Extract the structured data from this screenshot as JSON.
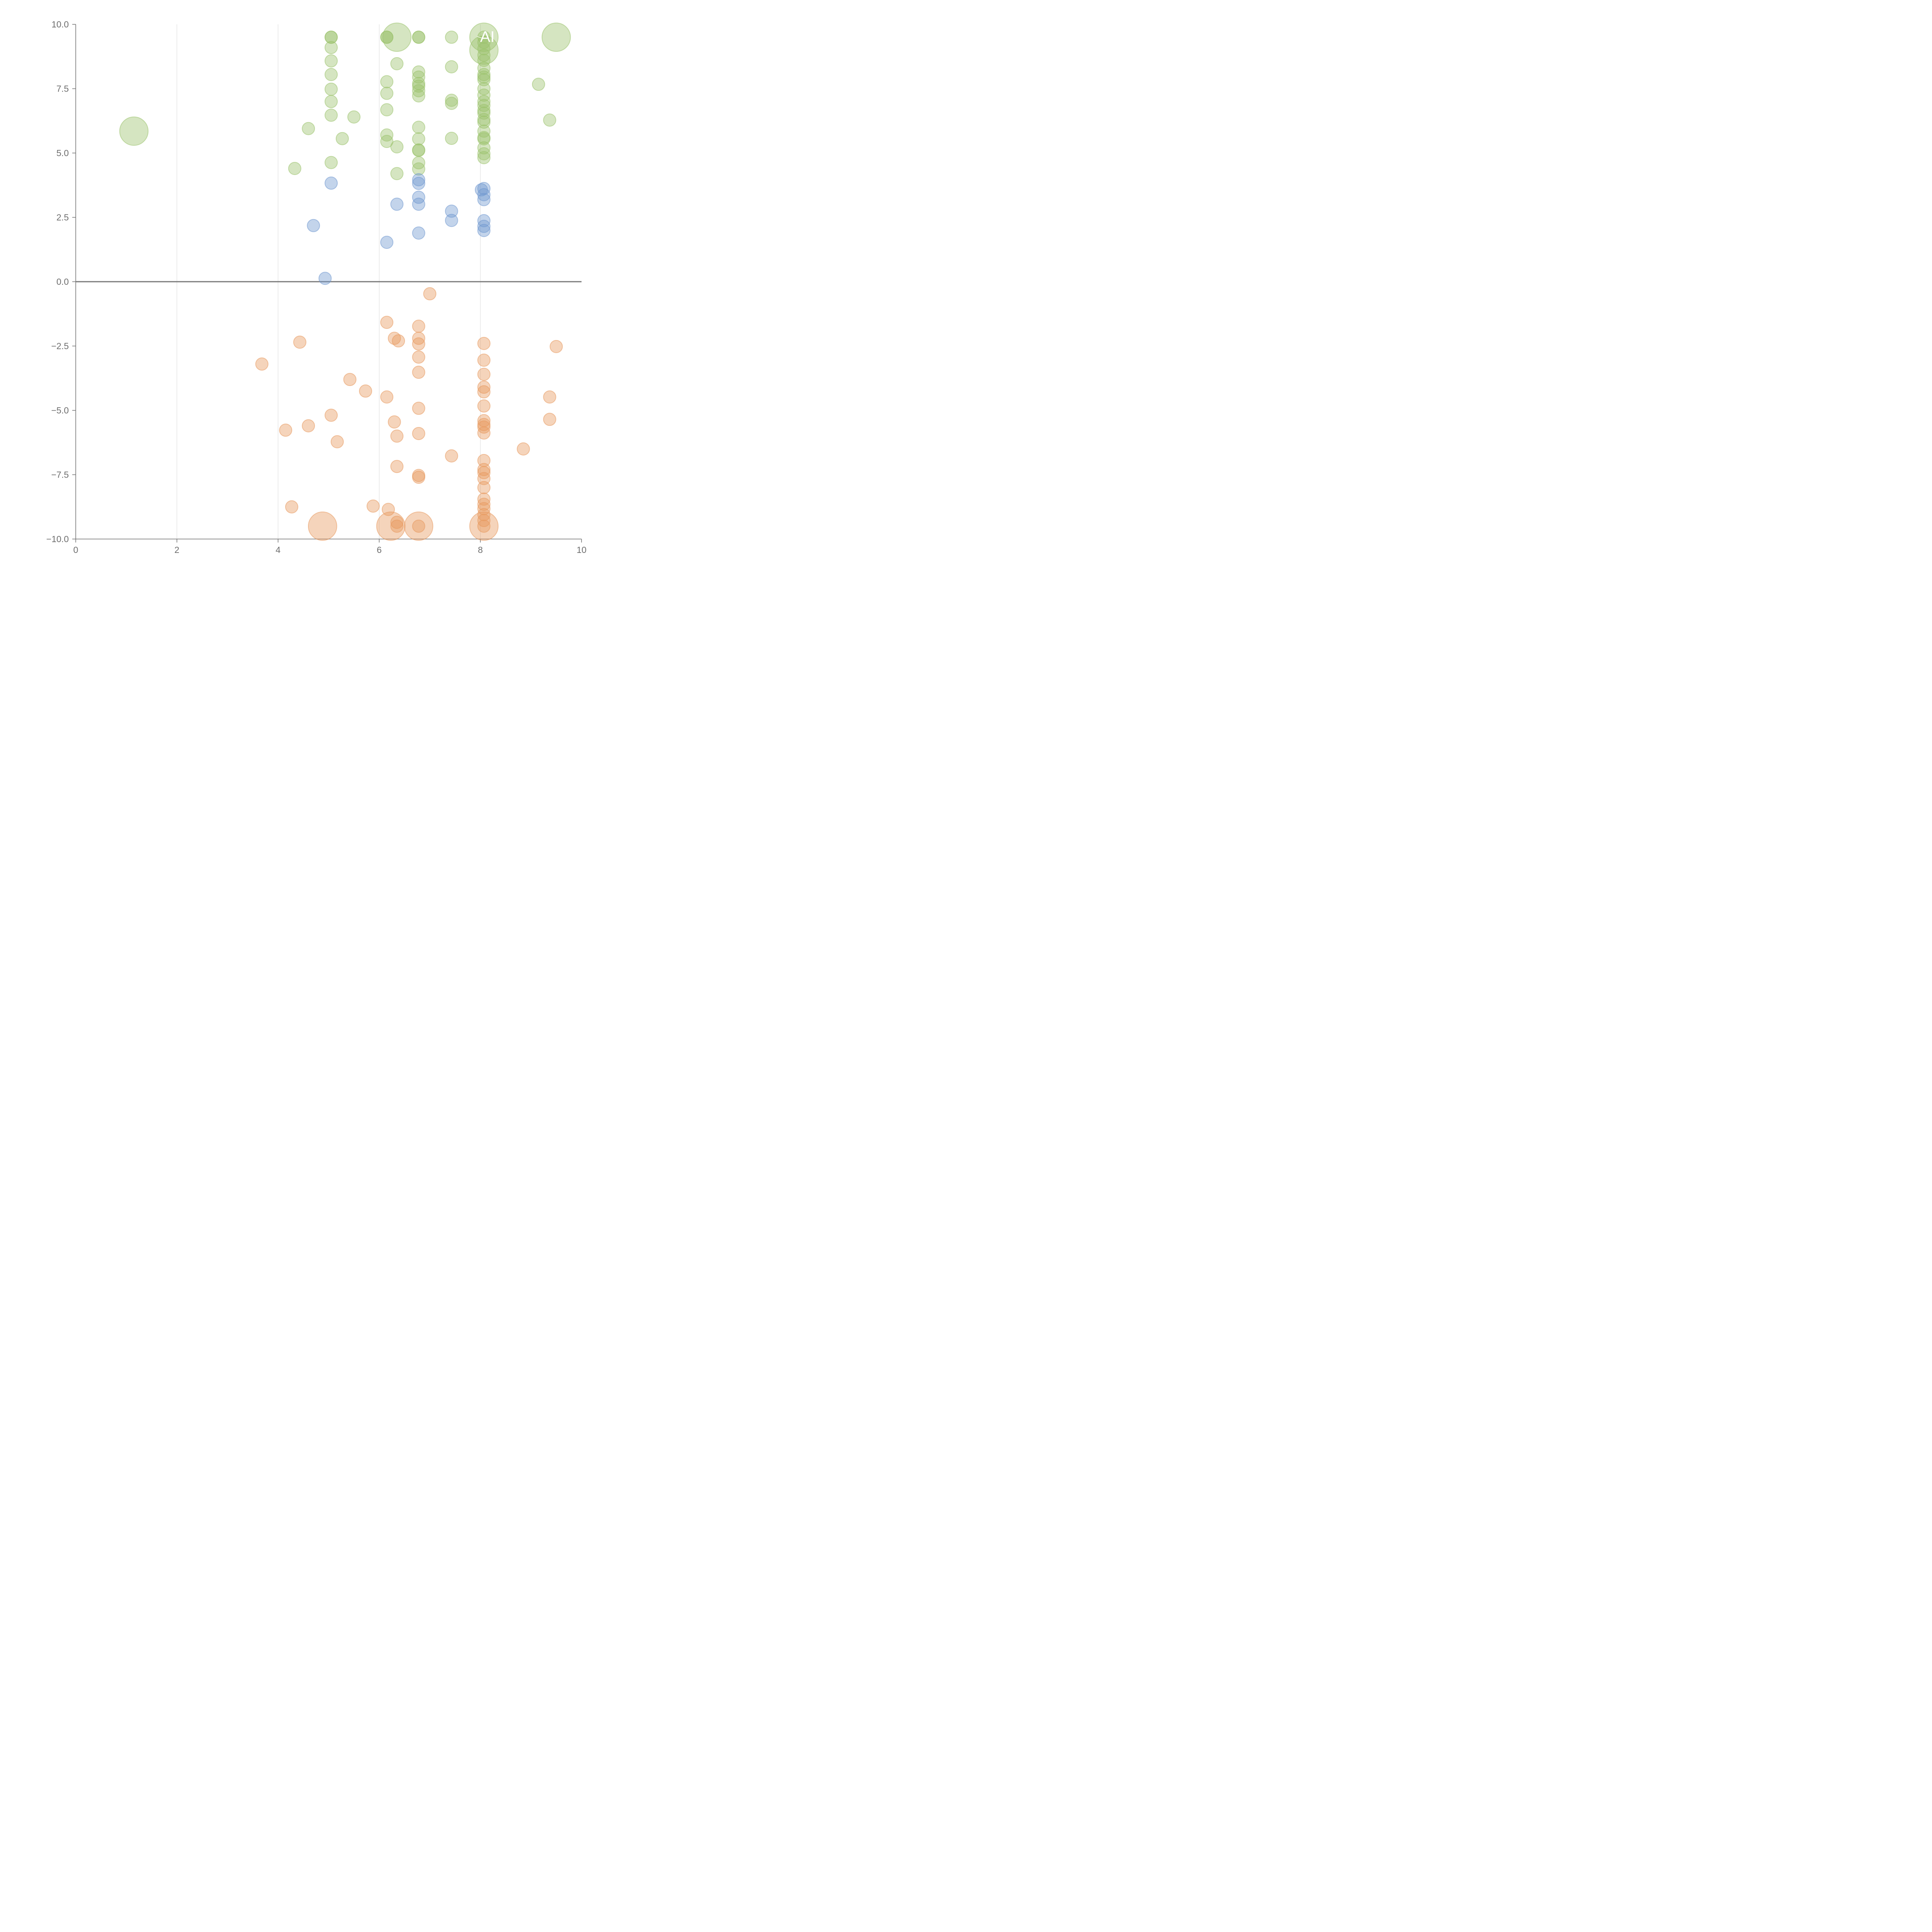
{
  "chart_data": {
    "type": "scatter",
    "title": "",
    "xlabel": "",
    "ylabel": "",
    "xlim": [
      0,
      10
    ],
    "ylim": [
      -10,
      10
    ],
    "xticks": [
      "0",
      "2",
      "4",
      "6",
      "8",
      "10"
    ],
    "yticks": [
      "10.0",
      "7.5",
      "5.0",
      "2.5",
      "0.0",
      "−2.5",
      "−5.0",
      "−7.5",
      "−10.0"
    ],
    "x_gridlines": [
      2,
      4,
      6,
      8
    ],
    "grid_x": true,
    "grid_y": false,
    "reference_line_y": 0,
    "colors": {
      "green": "#9bc26b",
      "blue": "#6f98cf",
      "orange": "#e8995e",
      "axis": "#6e6e6e",
      "grid": "#d9d9d9"
    },
    "series": [
      {
        "color": "green",
        "points": [
          {
            "x": 1.15,
            "y": 5.85,
            "s": 2.3
          },
          {
            "x": 4.33,
            "y": 4.4,
            "s": 1
          },
          {
            "x": 4.6,
            "y": 5.95,
            "s": 1
          },
          {
            "x": 5.05,
            "y": 9.5,
            "s": 1
          },
          {
            "x": 5.05,
            "y": 9.5,
            "s": 1
          },
          {
            "x": 5.05,
            "y": 9.1,
            "s": 1
          },
          {
            "x": 5.05,
            "y": 8.58,
            "s": 1
          },
          {
            "x": 5.05,
            "y": 8.05,
            "s": 1
          },
          {
            "x": 5.05,
            "y": 7.48,
            "s": 1
          },
          {
            "x": 5.05,
            "y": 7.0,
            "s": 1
          },
          {
            "x": 5.05,
            "y": 6.47,
            "s": 1
          },
          {
            "x": 5.05,
            "y": 4.63,
            "s": 1
          },
          {
            "x": 5.27,
            "y": 5.56,
            "s": 1
          },
          {
            "x": 5.5,
            "y": 6.4,
            "s": 1
          },
          {
            "x": 6.15,
            "y": 9.5,
            "s": 1
          },
          {
            "x": 6.15,
            "y": 9.5,
            "s": 1
          },
          {
            "x": 6.15,
            "y": 7.77,
            "s": 1
          },
          {
            "x": 6.15,
            "y": 7.32,
            "s": 1
          },
          {
            "x": 6.15,
            "y": 6.68,
            "s": 1
          },
          {
            "x": 6.15,
            "y": 5.7,
            "s": 1
          },
          {
            "x": 6.15,
            "y": 5.45,
            "s": 1
          },
          {
            "x": 6.35,
            "y": 9.5,
            "s": 2.3
          },
          {
            "x": 6.35,
            "y": 8.47,
            "s": 1
          },
          {
            "x": 6.35,
            "y": 5.24,
            "s": 1
          },
          {
            "x": 6.35,
            "y": 4.2,
            "s": 1
          },
          {
            "x": 6.78,
            "y": 9.5,
            "s": 1
          },
          {
            "x": 6.78,
            "y": 9.5,
            "s": 1
          },
          {
            "x": 6.78,
            "y": 8.15,
            "s": 1
          },
          {
            "x": 6.78,
            "y": 7.95,
            "s": 1
          },
          {
            "x": 6.78,
            "y": 7.7,
            "s": 1
          },
          {
            "x": 6.78,
            "y": 7.6,
            "s": 1
          },
          {
            "x": 6.78,
            "y": 7.42,
            "s": 1
          },
          {
            "x": 6.78,
            "y": 7.22,
            "s": 1
          },
          {
            "x": 6.78,
            "y": 6.0,
            "s": 1
          },
          {
            "x": 6.78,
            "y": 5.55,
            "s": 1
          },
          {
            "x": 6.78,
            "y": 5.12,
            "s": 1
          },
          {
            "x": 6.78,
            "y": 5.1,
            "s": 1
          },
          {
            "x": 6.78,
            "y": 4.62,
            "s": 1
          },
          {
            "x": 6.78,
            "y": 4.38,
            "s": 1
          },
          {
            "x": 7.43,
            "y": 9.5,
            "s": 1
          },
          {
            "x": 7.43,
            "y": 8.35,
            "s": 1
          },
          {
            "x": 7.43,
            "y": 7.05,
            "s": 1
          },
          {
            "x": 7.43,
            "y": 6.93,
            "s": 1
          },
          {
            "x": 7.43,
            "y": 5.57,
            "s": 1
          },
          {
            "x": 8.07,
            "y": 9.5,
            "s": 2.3
          },
          {
            "x": 8.07,
            "y": 9.0,
            "s": 2.3
          },
          {
            "x": 8.07,
            "y": 9.5,
            "s": 1
          },
          {
            "x": 8.07,
            "y": 9.3,
            "s": 1
          },
          {
            "x": 8.07,
            "y": 9.05,
            "s": 1
          },
          {
            "x": 8.07,
            "y": 8.8,
            "s": 1
          },
          {
            "x": 8.07,
            "y": 8.6,
            "s": 1
          },
          {
            "x": 8.07,
            "y": 8.3,
            "s": 1
          },
          {
            "x": 8.07,
            "y": 8.05,
            "s": 1
          },
          {
            "x": 8.07,
            "y": 7.95,
            "s": 1
          },
          {
            "x": 8.07,
            "y": 7.85,
            "s": 1
          },
          {
            "x": 8.07,
            "y": 7.5,
            "s": 1
          },
          {
            "x": 8.07,
            "y": 7.25,
            "s": 1
          },
          {
            "x": 8.07,
            "y": 7.0,
            "s": 1
          },
          {
            "x": 8.07,
            "y": 6.85,
            "s": 1
          },
          {
            "x": 8.07,
            "y": 6.65,
            "s": 1
          },
          {
            "x": 8.07,
            "y": 6.55,
            "s": 1
          },
          {
            "x": 8.07,
            "y": 6.3,
            "s": 1
          },
          {
            "x": 8.07,
            "y": 6.2,
            "s": 1
          },
          {
            "x": 8.07,
            "y": 5.85,
            "s": 1
          },
          {
            "x": 8.07,
            "y": 5.6,
            "s": 1
          },
          {
            "x": 8.07,
            "y": 5.55,
            "s": 1
          },
          {
            "x": 8.07,
            "y": 5.2,
            "s": 1
          },
          {
            "x": 8.07,
            "y": 4.97,
            "s": 1
          },
          {
            "x": 8.07,
            "y": 4.82,
            "s": 1
          },
          {
            "x": 9.15,
            "y": 7.67,
            "s": 1
          },
          {
            "x": 9.37,
            "y": 6.28,
            "s": 1
          },
          {
            "x": 9.5,
            "y": 9.5,
            "s": 2.3
          }
        ]
      },
      {
        "color": "blue",
        "points": [
          {
            "x": 4.7,
            "y": 2.18,
            "s": 1
          },
          {
            "x": 4.93,
            "y": 0.13,
            "s": 1
          },
          {
            "x": 5.05,
            "y": 3.83,
            "s": 1
          },
          {
            "x": 6.15,
            "y": 1.53,
            "s": 1
          },
          {
            "x": 6.35,
            "y": 3.01,
            "s": 1
          },
          {
            "x": 6.78,
            "y": 3.96,
            "s": 1
          },
          {
            "x": 6.78,
            "y": 3.82,
            "s": 1
          },
          {
            "x": 6.78,
            "y": 3.28,
            "s": 1
          },
          {
            "x": 6.78,
            "y": 3.01,
            "s": 1
          },
          {
            "x": 6.78,
            "y": 1.89,
            "s": 1
          },
          {
            "x": 7.43,
            "y": 2.74,
            "s": 1
          },
          {
            "x": 7.43,
            "y": 2.38,
            "s": 1
          },
          {
            "x": 8.02,
            "y": 3.57,
            "s": 1
          },
          {
            "x": 8.07,
            "y": 3.62,
            "s": 1
          },
          {
            "x": 8.07,
            "y": 3.38,
            "s": 1
          },
          {
            "x": 8.07,
            "y": 3.19,
            "s": 1
          },
          {
            "x": 8.07,
            "y": 2.37,
            "s": 1
          },
          {
            "x": 8.07,
            "y": 2.15,
            "s": 1
          },
          {
            "x": 8.07,
            "y": 1.99,
            "s": 1
          }
        ]
      },
      {
        "color": "orange",
        "points": [
          {
            "x": 3.68,
            "y": -3.2,
            "s": 1
          },
          {
            "x": 4.15,
            "y": -5.77,
            "s": 1
          },
          {
            "x": 4.27,
            "y": -8.75,
            "s": 1
          },
          {
            "x": 4.43,
            "y": -2.35,
            "s": 1
          },
          {
            "x": 4.6,
            "y": -5.6,
            "s": 1
          },
          {
            "x": 4.88,
            "y": -9.5,
            "s": 2.3
          },
          {
            "x": 5.05,
            "y": -5.19,
            "s": 1
          },
          {
            "x": 5.17,
            "y": -6.22,
            "s": 1
          },
          {
            "x": 5.42,
            "y": -3.8,
            "s": 1
          },
          {
            "x": 5.73,
            "y": -4.25,
            "s": 1
          },
          {
            "x": 5.88,
            "y": -8.72,
            "s": 1
          },
          {
            "x": 6.15,
            "y": -1.58,
            "s": 1
          },
          {
            "x": 6.15,
            "y": -4.48,
            "s": 1
          },
          {
            "x": 6.23,
            "y": -9.5,
            "s": 2.3
          },
          {
            "x": 6.3,
            "y": -2.2,
            "s": 1
          },
          {
            "x": 6.3,
            "y": -5.45,
            "s": 1
          },
          {
            "x": 6.35,
            "y": -6.0,
            "s": 1
          },
          {
            "x": 6.35,
            "y": -7.18,
            "s": 1
          },
          {
            "x": 6.35,
            "y": -9.35,
            "s": 1
          },
          {
            "x": 6.35,
            "y": -9.5,
            "s": 1
          },
          {
            "x": 6.38,
            "y": -2.3,
            "s": 1
          },
          {
            "x": 6.18,
            "y": -8.85,
            "s": 1
          },
          {
            "x": 6.78,
            "y": -1.73,
            "s": 1
          },
          {
            "x": 6.78,
            "y": -2.2,
            "s": 1
          },
          {
            "x": 6.78,
            "y": -2.42,
            "s": 1
          },
          {
            "x": 6.78,
            "y": -2.93,
            "s": 1
          },
          {
            "x": 6.78,
            "y": -3.52,
            "s": 1
          },
          {
            "x": 6.78,
            "y": -4.92,
            "s": 1
          },
          {
            "x": 6.78,
            "y": -5.9,
            "s": 1
          },
          {
            "x": 6.78,
            "y": -7.53,
            "s": 1
          },
          {
            "x": 6.78,
            "y": -7.6,
            "s": 1
          },
          {
            "x": 6.78,
            "y": -9.5,
            "s": 2.3
          },
          {
            "x": 6.78,
            "y": -9.5,
            "s": 1
          },
          {
            "x": 7.0,
            "y": -0.47,
            "s": 1
          },
          {
            "x": 7.43,
            "y": -6.77,
            "s": 1
          },
          {
            "x": 8.07,
            "y": -2.4,
            "s": 1
          },
          {
            "x": 8.07,
            "y": -3.05,
            "s": 1
          },
          {
            "x": 8.07,
            "y": -3.6,
            "s": 1
          },
          {
            "x": 8.07,
            "y": -4.1,
            "s": 1
          },
          {
            "x": 8.07,
            "y": -4.28,
            "s": 1
          },
          {
            "x": 8.07,
            "y": -4.83,
            "s": 1
          },
          {
            "x": 8.07,
            "y": -5.4,
            "s": 1
          },
          {
            "x": 8.07,
            "y": -5.55,
            "s": 1
          },
          {
            "x": 8.07,
            "y": -5.65,
            "s": 1
          },
          {
            "x": 8.07,
            "y": -5.88,
            "s": 1
          },
          {
            "x": 8.07,
            "y": -6.95,
            "s": 1
          },
          {
            "x": 8.07,
            "y": -7.3,
            "s": 1
          },
          {
            "x": 8.07,
            "y": -7.42,
            "s": 1
          },
          {
            "x": 8.07,
            "y": -7.65,
            "s": 1
          },
          {
            "x": 8.07,
            "y": -8.0,
            "s": 1
          },
          {
            "x": 8.07,
            "y": -8.45,
            "s": 1
          },
          {
            "x": 8.07,
            "y": -8.65,
            "s": 1
          },
          {
            "x": 8.07,
            "y": -8.82,
            "s": 1
          },
          {
            "x": 8.07,
            "y": -9.05,
            "s": 1
          },
          {
            "x": 8.07,
            "y": -9.28,
            "s": 1
          },
          {
            "x": 8.07,
            "y": -9.5,
            "s": 2.3
          },
          {
            "x": 8.07,
            "y": -9.5,
            "s": 1
          },
          {
            "x": 8.85,
            "y": -6.5,
            "s": 1
          },
          {
            "x": 9.37,
            "y": -4.48,
            "s": 1
          },
          {
            "x": 9.37,
            "y": -5.35,
            "s": 1
          },
          {
            "x": 9.5,
            "y": -2.52,
            "s": 1
          }
        ]
      }
    ],
    "annotations": [
      {
        "text": "AI",
        "x": 8.07,
        "y": 9.5
      }
    ]
  }
}
